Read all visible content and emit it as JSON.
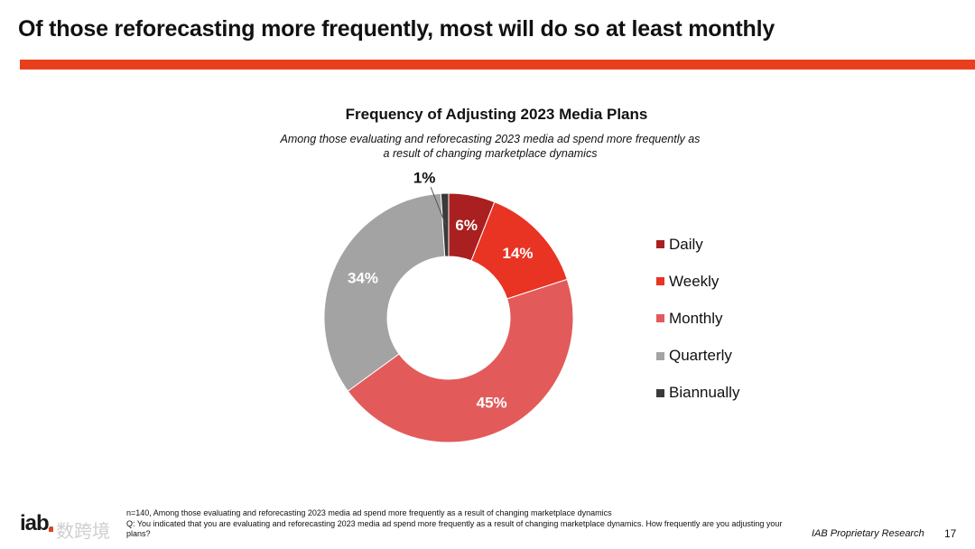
{
  "slide": {
    "title": "Of those reforecasting more frequently, most will do so at least monthly",
    "accent_color": "#e8401c"
  },
  "chart_data": {
    "type": "pie",
    "subtype": "donut",
    "title": "Frequency of Adjusting 2023 Media Plans",
    "subtitle_line1": "Among those evaluating and reforecasting 2023 media ad spend more frequently as",
    "subtitle_line2": "a result of changing marketplace dynamics",
    "legend_position": "right",
    "slices": [
      {
        "label": "Daily",
        "value": 6,
        "value_label": "6%",
        "color": "#aa1f1f",
        "label_color": "#ffffff"
      },
      {
        "label": "Weekly",
        "value": 14,
        "value_label": "14%",
        "color": "#e93323",
        "label_color": "#ffffff"
      },
      {
        "label": "Monthly",
        "value": 45,
        "value_label": "45%",
        "color": "#e35a5a",
        "label_color": "#ffffff"
      },
      {
        "label": "Quarterly",
        "value": 34,
        "value_label": "34%",
        "color": "#a3a3a3",
        "label_color": "#ffffff"
      },
      {
        "label": "Biannually",
        "value": 1,
        "value_label": "1%",
        "color": "#3a3a3a",
        "label_color": "#111111"
      }
    ]
  },
  "footer": {
    "note": "n=140, Among those evaluating and reforecasting 2023 media ad spend more frequently as a result of changing marketplace dynamics",
    "question": "Q: You indicated that you are evaluating and reforecasting 2023 media ad spend more frequently as a result of changing marketplace dynamics. How frequently are you adjusting your plans?",
    "logo_text": "iab.",
    "watermark_text": "数跨境",
    "proprietary": "IAB Proprietary Research",
    "page_number": "17"
  }
}
